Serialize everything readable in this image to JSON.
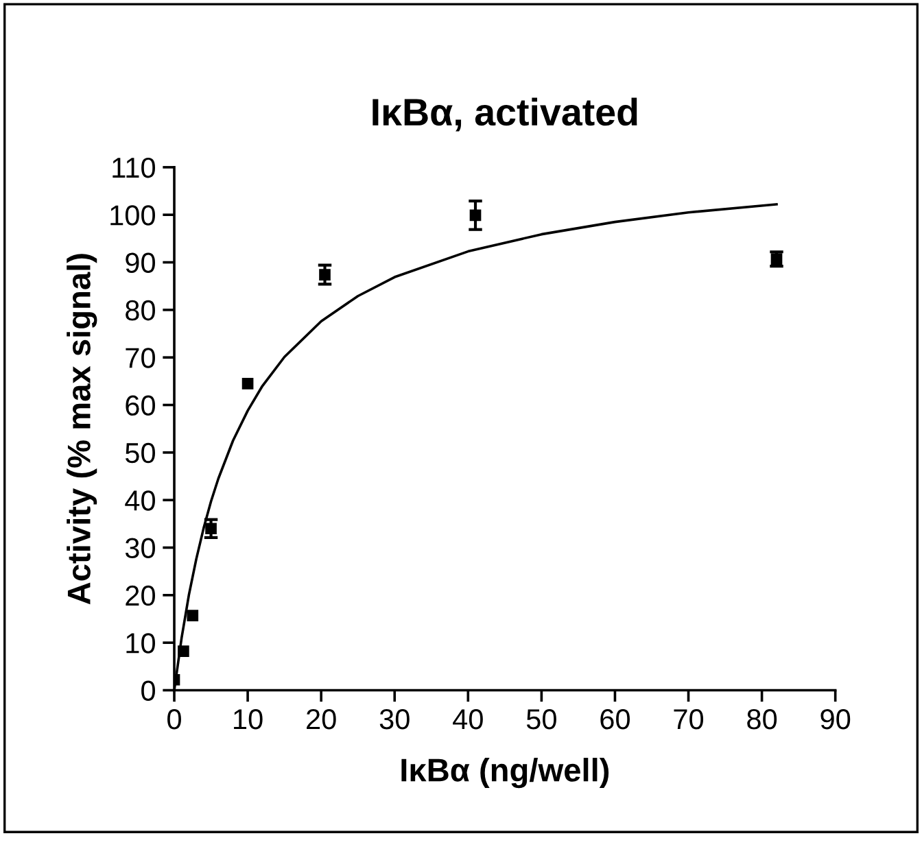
{
  "chart_data": {
    "type": "scatter",
    "title": "IκBα, activated",
    "xlabel": "IκBα (ng/well)",
    "ylabel": "Activity (% max signal)",
    "xlim": [
      0,
      90
    ],
    "xticks": [
      0,
      10,
      20,
      30,
      40,
      50,
      60,
      70,
      80,
      90
    ],
    "ylim": [
      0,
      110
    ],
    "yticks": [
      0,
      10,
      20,
      30,
      40,
      50,
      60,
      70,
      80,
      90,
      100,
      110
    ],
    "grid": false,
    "marker": "square",
    "series": [
      {
        "color": "#000000",
        "x": [
          0,
          1.25,
          2.5,
          5,
          10,
          20.5,
          41,
          82
        ],
        "values": [
          2.2,
          8.2,
          15.7,
          34,
          64.5,
          87.4,
          99.9,
          90.7
        ],
        "errors": [
          null,
          null,
          null,
          1.9,
          null,
          2,
          3,
          1.5
        ]
      },
      {
        "type": "line",
        "color": "#000000",
        "marker": "none",
        "line_style": "solid",
        "x": [
          0,
          1,
          2,
          3,
          4,
          5,
          6,
          8,
          10,
          12,
          15,
          20,
          25,
          30,
          40,
          50,
          60,
          70,
          82
        ],
        "values": [
          0,
          11.0,
          20.1,
          27.6,
          34.1,
          39.7,
          44.5,
          52.5,
          58.8,
          64.0,
          70.1,
          77.6,
          82.9,
          86.9,
          92.3,
          95.9,
          98.5,
          100.5,
          102.2
        ]
      }
    ]
  }
}
